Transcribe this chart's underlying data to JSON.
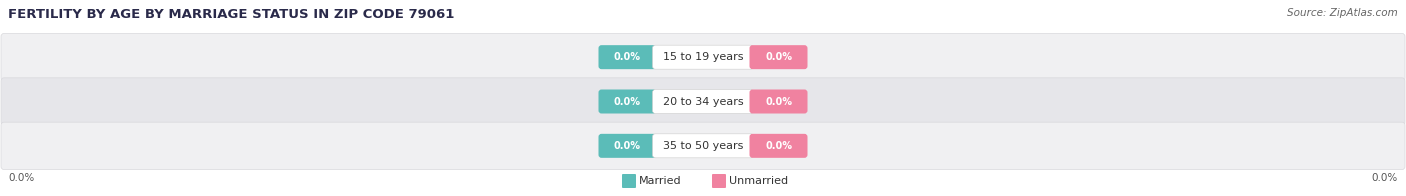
{
  "title": "FERTILITY BY AGE BY MARRIAGE STATUS IN ZIP CODE 79061",
  "source": "Source: ZipAtlas.com",
  "age_groups": [
    "15 to 19 years",
    "20 to 34 years",
    "35 to 50 years"
  ],
  "married_values": [
    0.0,
    0.0,
    0.0
  ],
  "unmarried_values": [
    0.0,
    0.0,
    0.0
  ],
  "married_color": "#5bbcb8",
  "unmarried_color": "#f082a0",
  "row_bg_light": "#f0f0f2",
  "row_bg_dark": "#e6e6ea",
  "row_border": "#d8d8dc",
  "label_bg": "#ffffff",
  "title_fontsize": 9.5,
  "source_fontsize": 7.5,
  "label_fontsize": 8,
  "value_fontsize": 7,
  "axis_label_fontsize": 7.5,
  "left_label": "0.0%",
  "right_label": "0.0%",
  "legend_married": "Married",
  "legend_unmarried": "Unmarried"
}
